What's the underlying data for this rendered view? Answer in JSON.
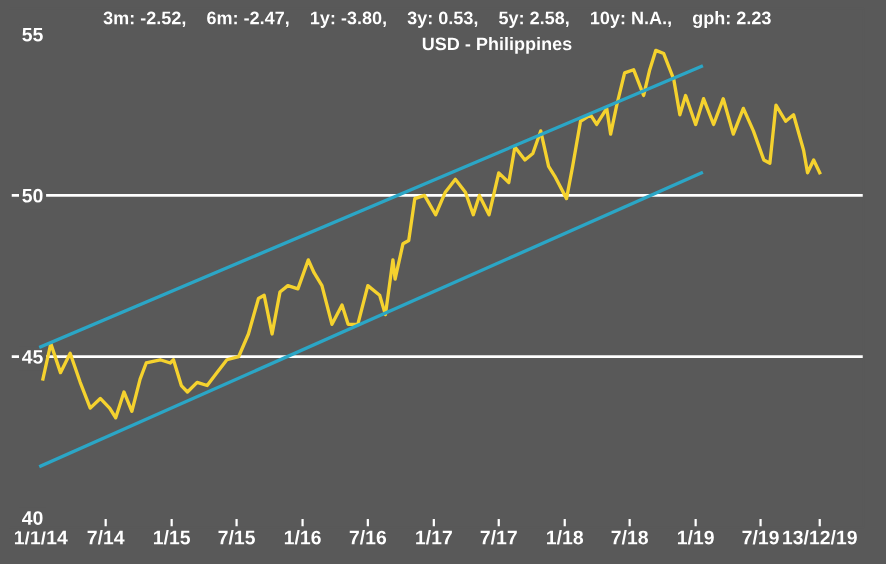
{
  "chart_data": {
    "type": "line",
    "title": "3m: -2.52,    6m: -2.47,    1y: -3.80,    3y: 0.53,    5y: 2.58,    10y: N.A.,    gph: 2.23",
    "subtitle": "USD - Philippines",
    "xlim": [
      "2013-10-09",
      "2020-04-14"
    ],
    "ylim": [
      39.7,
      55.8
    ],
    "yticks": [
      40,
      45,
      50,
      55
    ],
    "xticks": [
      {
        "value": "2014-01-01",
        "label": "1/1/14"
      },
      {
        "value": "2014-07-01",
        "label": "7/14"
      },
      {
        "value": "2015-01-01",
        "label": "1/15"
      },
      {
        "value": "2015-07-01",
        "label": "7/15"
      },
      {
        "value": "2016-01-01",
        "label": "1/16"
      },
      {
        "value": "2016-07-01",
        "label": "7/16"
      },
      {
        "value": "2017-01-01",
        "label": "1/17"
      },
      {
        "value": "2017-07-01",
        "label": "7/17"
      },
      {
        "value": "2018-01-01",
        "label": "1/18"
      },
      {
        "value": "2018-07-01",
        "label": "7/18"
      },
      {
        "value": "2019-01-01",
        "label": "1/19"
      },
      {
        "value": "2019-07-01",
        "label": "7/19"
      },
      {
        "value": "2019-12-13",
        "label": "13/12/19"
      }
    ],
    "ref_lines": [
      {
        "axis": "y",
        "value": 45,
        "color": "#ffffff"
      },
      {
        "axis": "y",
        "value": 50,
        "color": "#ffffff"
      }
    ],
    "series": [
      {
        "color": "#f5d22e",
        "x": [
          "2014-01-07",
          "2014-01-29",
          "2014-02-25",
          "2014-03-24",
          "2014-04-21",
          "2014-05-19",
          "2014-06-16",
          "2014-07-12",
          "2014-07-29",
          "2014-08-21",
          "2014-09-12",
          "2014-10-05",
          "2014-10-22",
          "2014-11-30",
          "2014-12-28",
          "2015-01-06",
          "2015-01-28",
          "2015-02-14",
          "2015-03-13",
          "2015-04-10",
          "2015-05-07",
          "2015-06-04",
          "2015-07-07",
          "2015-08-03",
          "2015-08-31",
          "2015-09-16",
          "2015-10-08",
          "2015-10-30",
          "2015-11-21",
          "2015-12-19",
          "2016-01-17",
          "2016-02-02",
          "2016-02-24",
          "2016-03-23",
          "2016-04-20",
          "2016-05-07",
          "2016-06-03",
          "2016-07-01",
          "2016-08-03",
          "2016-08-19",
          "2016-09-09",
          "2016-09-15",
          "2016-10-07",
          "2016-10-23",
          "2016-11-09",
          "2016-12-06",
          "2017-01-06",
          "2017-02-02",
          "2017-03-02",
          "2017-03-30",
          "2017-04-21",
          "2017-05-08",
          "2017-06-04",
          "2017-07-01",
          "2017-07-29",
          "2017-08-15",
          "2017-09-12",
          "2017-10-04",
          "2017-10-26",
          "2017-11-17",
          "2017-12-04",
          "2018-01-06",
          "2018-01-23",
          "2018-02-14",
          "2018-03-14",
          "2018-03-31",
          "2018-04-28",
          "2018-05-09",
          "2018-05-26",
          "2018-06-17",
          "2018-07-12",
          "2018-08-09",
          "2018-08-26",
          "2018-09-12",
          "2018-10-04",
          "2018-11-01",
          "2018-11-18",
          "2018-12-04",
          "2019-01-01",
          "2019-01-23",
          "2019-02-20",
          "2019-03-19",
          "2019-04-16",
          "2019-05-14",
          "2019-06-11",
          "2019-07-10",
          "2019-07-27",
          "2019-08-13",
          "2019-09-09",
          "2019-10-01",
          "2019-10-29",
          "2019-11-09",
          "2019-11-26",
          "2019-12-13"
        ],
        "values": [
          44.3,
          45.4,
          44.5,
          45.1,
          44.2,
          43.4,
          43.7,
          43.4,
          43.1,
          43.9,
          43.3,
          44.3,
          44.8,
          44.9,
          44.8,
          44.9,
          44.1,
          43.9,
          44.2,
          44.1,
          44.5,
          44.9,
          45.0,
          45.7,
          46.8,
          46.9,
          45.7,
          47.0,
          47.2,
          47.1,
          48.0,
          47.6,
          47.2,
          46.0,
          46.6,
          46.0,
          46.0,
          47.2,
          46.9,
          46.3,
          48.0,
          47.4,
          48.5,
          48.6,
          49.9,
          50.0,
          49.4,
          50.1,
          50.5,
          50.1,
          49.4,
          50.0,
          49.4,
          50.7,
          50.4,
          51.5,
          51.1,
          51.3,
          52.0,
          50.9,
          50.6,
          49.9,
          50.9,
          52.3,
          52.5,
          52.2,
          52.7,
          51.9,
          52.8,
          53.8,
          53.9,
          53.1,
          53.9,
          54.5,
          54.4,
          53.6,
          52.5,
          53.1,
          52.2,
          53.0,
          52.2,
          53.0,
          51.9,
          52.7,
          52.0,
          51.1,
          51.0,
          52.8,
          52.3,
          52.5,
          51.4,
          50.7,
          51.1,
          50.7
        ]
      },
      {
        "color": "#2ba6c6",
        "x": [
          "2014-01-01",
          "2019-01-17"
        ],
        "values": [
          45.3,
          54.0
        ]
      },
      {
        "color": "#2ba6c6",
        "x": [
          "2014-01-01",
          "2019-01-17"
        ],
        "values": [
          41.6,
          50.7
        ]
      }
    ]
  }
}
